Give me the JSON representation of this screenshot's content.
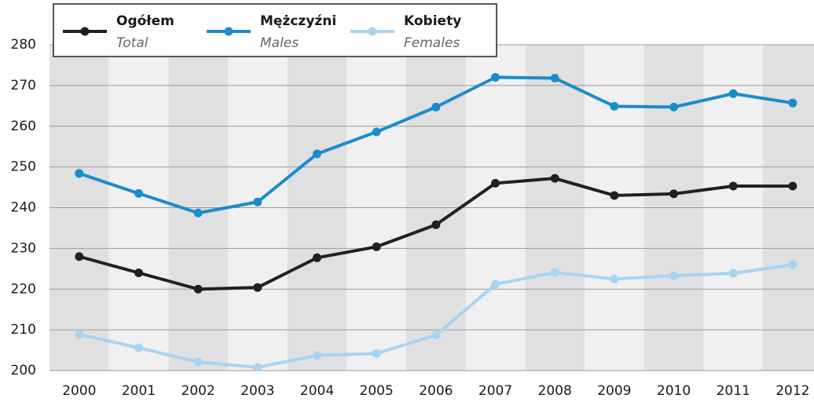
{
  "chart_data": {
    "type": "line",
    "categories": [
      "2000",
      "2001",
      "2002",
      "2003",
      "2004",
      "2005",
      "2006",
      "2007",
      "2008",
      "2009",
      "2010",
      "2011",
      "2012"
    ],
    "series": [
      {
        "name": "Ogółem",
        "name_en": "Total",
        "color": "#231f20",
        "values": [
          228,
          224,
          220,
          220.4,
          227.7,
          230.4,
          235.8,
          246,
          247.2,
          243,
          243.4,
          245.3,
          245.3
        ]
      },
      {
        "name": "Mężczyźni",
        "name_en": "Males",
        "color": "#1a8ccc",
        "values": [
          248.4,
          243.5,
          238.7,
          241.4,
          253.2,
          258.6,
          264.7,
          272,
          271.8,
          264.9,
          264.7,
          268,
          265.7
        ]
      },
      {
        "name": "Kobiety",
        "name_en": "Females",
        "color": "#a9d3f0",
        "values": [
          208.9,
          205.6,
          202.1,
          200.8,
          203.7,
          204.2,
          208.7,
          221.2,
          224.1,
          222.5,
          223.3,
          223.9,
          226
        ]
      }
    ],
    "ylim": [
      200,
      280
    ],
    "yticks": [
      200,
      210,
      220,
      230,
      240,
      250,
      260,
      270,
      280
    ],
    "grid": true
  }
}
